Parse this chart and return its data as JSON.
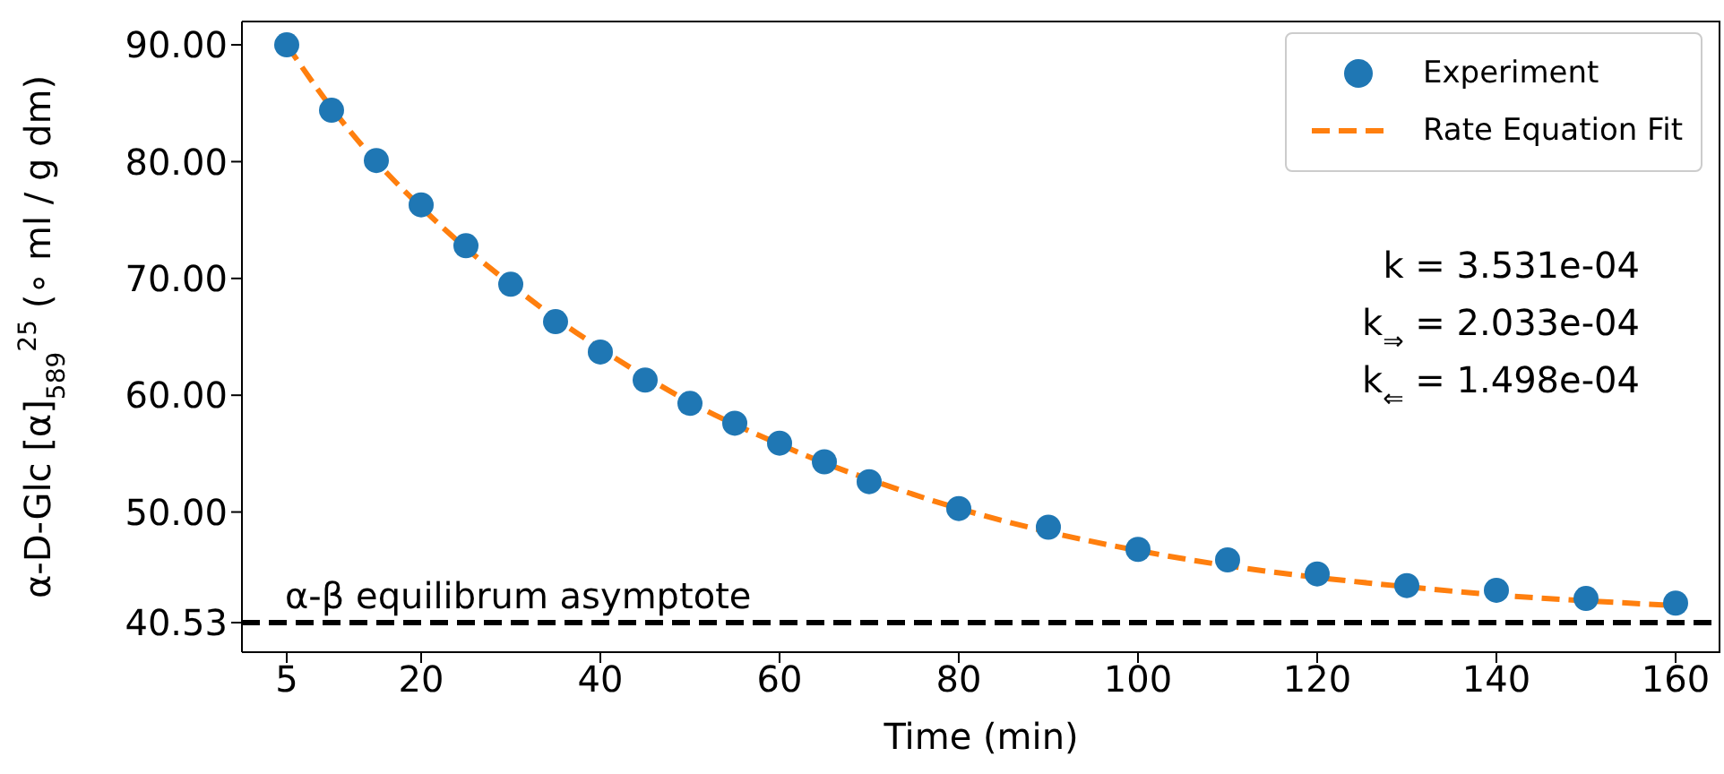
{
  "chart_data": {
    "type": "scatter",
    "xlabel": "Time (min)",
    "ylabel": "α-D-Glc [α]$_{589}$$^{25}$ (∘ ml / g dm)",
    "x": [
      5,
      10,
      15,
      20,
      25,
      30,
      35,
      40,
      45,
      50,
      55,
      60,
      65,
      70,
      80,
      90,
      100,
      110,
      120,
      130,
      140,
      150,
      160
    ],
    "series": [
      {
        "name": "Experiment",
        "color": "#1f77b4",
        "marker": "circle",
        "values": [
          90.0,
          84.4,
          80.1,
          76.3,
          72.8,
          69.5,
          66.3,
          63.7,
          61.3,
          59.3,
          57.6,
          55.9,
          54.3,
          52.6,
          50.3,
          48.7,
          46.8,
          45.9,
          44.7,
          43.7,
          43.3,
          42.6,
          42.2
        ]
      },
      {
        "name": "Rate Equation Fit",
        "type": "line",
        "color": "#ff7f0e",
        "marker": "none",
        "line_style": "dashed",
        "values": [
          90.0,
          84.6,
          80.0,
          76.1,
          72.6,
          69.5,
          66.6,
          64.0,
          61.6,
          59.4,
          57.5,
          55.8,
          54.2,
          52.8,
          50.3,
          48.3,
          46.7,
          45.4,
          44.4,
          43.6,
          42.9,
          42.4,
          42.0
        ]
      }
    ],
    "xlim": [
      0,
      165
    ],
    "xticks": [
      5,
      20,
      40,
      60,
      80,
      100,
      120,
      140,
      160
    ],
    "ylim": [
      38,
      92
    ],
    "yticks": [
      {
        "value": 40.53,
        "label": "40.53"
      },
      {
        "value": 50,
        "label": "50.00"
      },
      {
        "value": 60,
        "label": "60.00"
      },
      {
        "value": 70,
        "label": "70.00"
      },
      {
        "value": 80,
        "label": "80.00"
      },
      {
        "value": 90,
        "label": "90.00"
      }
    ],
    "ref_lines": [
      {
        "axis": "y",
        "value": 40.53,
        "label": "α-β equilibrum asymptote",
        "color": "#000000",
        "line_style": "dashed"
      }
    ],
    "annotations": [
      "k = 3.531e-04",
      "k$_{⇒}$ = 2.033e-04",
      "k$_{⇐}$ = 1.498e-04"
    ],
    "legend": "top right",
    "grid": false
  }
}
